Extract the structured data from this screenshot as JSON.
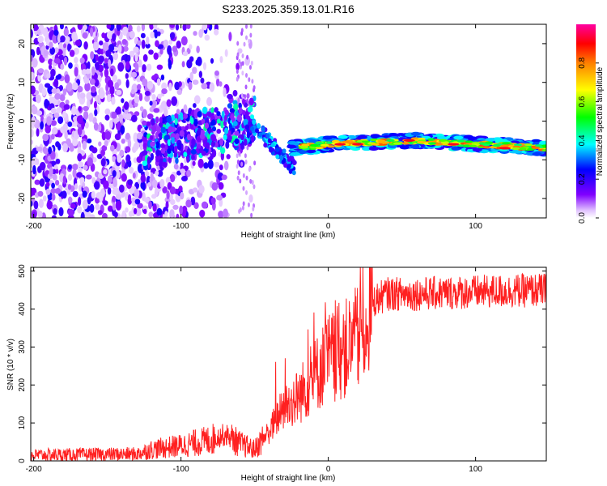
{
  "title": "S233.2025.359.13.01.R16",
  "colorbar": {
    "label": "Normalized spectral amplitude",
    "range": [
      0,
      1
    ],
    "ticks": [
      "0.0",
      "0.2",
      "0.4",
      "0.6",
      "0.8"
    ],
    "tick_values": [
      0.0,
      0.2,
      0.4,
      0.6,
      0.8
    ]
  },
  "colors": {
    "snr_line": "#ff2020",
    "frame": "#000000"
  },
  "chart_data": [
    {
      "type": "heatmap",
      "name": "spectrogram",
      "xlabel": "Height of straight line (km)",
      "ylabel": "Frequency (Hz)",
      "xlim": [
        -202,
        148
      ],
      "ylim": [
        -25,
        25
      ],
      "xticks": [
        -200,
        -100,
        0,
        100
      ],
      "xtick_labels": [
        "-200",
        "-100",
        "0",
        "100"
      ],
      "yticks": [
        -20,
        -10,
        0,
        10,
        20
      ],
      "ytick_labels": [
        "-20",
        "-10",
        "0",
        "10",
        "20"
      ],
      "description_points": [
        {
          "x": -120,
          "y": -6
        },
        {
          "x": -50,
          "y": 0
        },
        {
          "x": -25,
          "y": -7
        },
        {
          "x": 0,
          "y": -6
        },
        {
          "x": 60,
          "y": -5
        },
        {
          "x": 148,
          "y": -7
        }
      ]
    },
    {
      "type": "line",
      "name": "snr",
      "xlabel": "Height of straight line (km)",
      "ylabel": "SNR (10 * v/v)",
      "xlim": [
        -202,
        148
      ],
      "ylim": [
        0,
        510
      ],
      "xticks": [
        -200,
        -100,
        0,
        100
      ],
      "xtick_labels": [
        "-200",
        "-100",
        "0",
        "100"
      ],
      "yticks": [
        0,
        100,
        200,
        300,
        400,
        500
      ],
      "ytick_labels": [
        "0",
        "100",
        "200",
        "300",
        "400",
        "500"
      ],
      "trend": {
        "x": [
          -202,
          -130,
          -120,
          -100,
          -80,
          -70,
          -60,
          -50,
          -40,
          -30,
          -20,
          -10,
          0,
          10,
          20,
          25,
          30,
          40,
          60,
          100,
          148
        ],
        "y": [
          15,
          18,
          30,
          40,
          55,
          70,
          45,
          30,
          80,
          140,
          170,
          220,
          270,
          290,
          320,
          370,
          420,
          440,
          440,
          445,
          450
        ]
      }
    }
  ]
}
